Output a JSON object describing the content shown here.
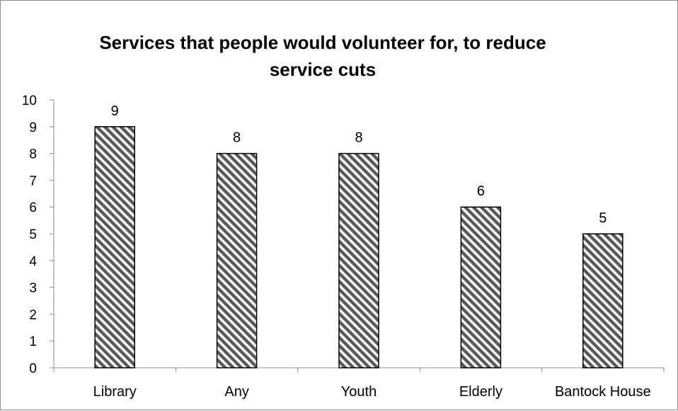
{
  "chart_data": {
    "type": "bar",
    "title": "Services that people would volunteer for, to reduce service cuts",
    "xlabel": "",
    "ylabel": "",
    "categories": [
      "Library",
      "Any",
      "Youth",
      "Elderly",
      "Bantock House"
    ],
    "values": [
      9,
      8,
      8,
      6,
      5
    ],
    "data_labels": [
      "9",
      "8",
      "8",
      "6",
      "5"
    ],
    "ylim": [
      0,
      10
    ],
    "yticks": [
      "0",
      "1",
      "2",
      "3",
      "4",
      "5",
      "6",
      "7",
      "8",
      "9",
      "10"
    ],
    "grid": false,
    "legend": "none",
    "bar_fill": "diagonal-hatch",
    "colors": {
      "bar_stripe": "#595959",
      "bar_background": "#ffffff",
      "bar_border": "#000000",
      "axis": "#8c8c8c"
    }
  }
}
